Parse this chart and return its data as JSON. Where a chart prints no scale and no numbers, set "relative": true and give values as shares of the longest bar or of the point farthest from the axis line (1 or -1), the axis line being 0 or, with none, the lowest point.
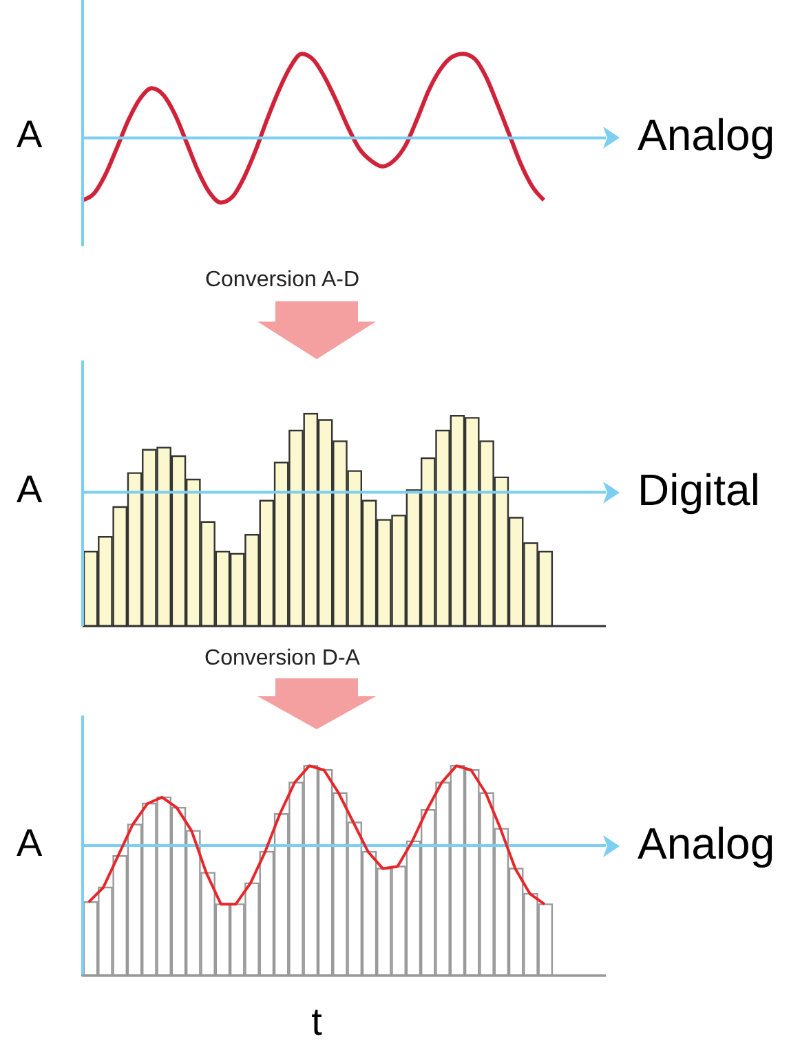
{
  "chart_data": [
    {
      "type": "line",
      "xlabel": "Analog",
      "ylabel": "A",
      "relative": true,
      "ref_lines": [
        {
          "axis": "y",
          "value": 0,
          "color": "#7ccff0"
        }
      ],
      "categories": [
        null,
        null,
        null,
        null,
        null,
        null,
        null,
        null,
        null,
        null,
        null,
        null,
        null,
        null,
        null,
        null,
        null,
        null,
        null,
        null,
        null,
        null,
        null,
        null,
        null,
        null,
        null,
        null,
        null,
        null,
        null,
        null,
        null,
        null,
        null,
        null,
        null,
        null,
        null,
        null,
        null
      ],
      "series": [
        {
          "color": "#d0233a",
          "values": [
            -0.74,
            -0.66,
            -0.43,
            -0.11,
            0.22,
            0.47,
            0.59,
            0.51,
            0.28,
            -0.05,
            -0.39,
            -0.65,
            -0.77,
            -0.7,
            -0.47,
            -0.15,
            0.22,
            0.56,
            0.84,
            1,
            0.93,
            0.72,
            0.44,
            0.13,
            -0.13,
            -0.27,
            -0.34,
            -0.27,
            -0.09,
            0.22,
            0.56,
            0.81,
            0.96,
            1,
            0.94,
            0.72,
            0.39,
            0.04,
            -0.31,
            -0.58,
            -0.74
          ]
        }
      ]
    },
    {
      "type": "bar",
      "title": "Conversion A-D",
      "xlabel": "Digital",
      "ylabel": "A",
      "relative": true,
      "categories": [
        null,
        null,
        null,
        null,
        null,
        null,
        null,
        null,
        null,
        null,
        null,
        null,
        null,
        null,
        null,
        null,
        null,
        null,
        null,
        null,
        null,
        null,
        null,
        null,
        null,
        null,
        null,
        null,
        null,
        null,
        null,
        null
      ],
      "series": [
        {
          "color": "#fbf8cf",
          "values": [
            0.35,
            0.42,
            0.56,
            0.72,
            0.83,
            0.84,
            0.8,
            0.69,
            0.49,
            0.35,
            0.34,
            0.43,
            0.59,
            0.77,
            0.92,
            1,
            0.97,
            0.87,
            0.73,
            0.59,
            0.5,
            0.52,
            0.64,
            0.79,
            0.92,
            0.99,
            0.98,
            0.87,
            0.7,
            0.51,
            0.39,
            0.35
          ]
        }
      ],
      "ref_lines": [
        {
          "axis": "y",
          "value": 0.63,
          "color": "#7ccff0"
        }
      ]
    },
    {
      "type": "bar",
      "title": "Conversion D-A",
      "xlabel": "Analog",
      "ylabel": "A",
      "annotations": [
        "t"
      ],
      "relative": true,
      "categories": [
        null,
        null,
        null,
        null,
        null,
        null,
        null,
        null,
        null,
        null,
        null,
        null,
        null,
        null,
        null,
        null,
        null,
        null,
        null,
        null,
        null,
        null,
        null,
        null,
        null,
        null,
        null,
        null,
        null,
        null,
        null,
        null
      ],
      "series": [
        {
          "color": "#ffffff",
          "values": [
            0.35,
            0.42,
            0.57,
            0.72,
            0.82,
            0.85,
            0.8,
            0.69,
            0.49,
            0.34,
            0.34,
            0.44,
            0.59,
            0.77,
            0.92,
            1,
            0.98,
            0.87,
            0.73,
            0.59,
            0.51,
            0.52,
            0.64,
            0.79,
            0.92,
            1,
            0.98,
            0.87,
            0.7,
            0.51,
            0.39,
            0.34
          ]
        }
      ],
      "ref_lines": [
        {
          "axis": "y",
          "value": 0.62,
          "color": "#7ccff0"
        }
      ]
    },
    {
      "type": "line",
      "relative": true,
      "categories": [
        null,
        null,
        null,
        null,
        null,
        null,
        null,
        null,
        null,
        null,
        null,
        null,
        null,
        null,
        null,
        null,
        null,
        null,
        null,
        null,
        null,
        null,
        null,
        null,
        null,
        null,
        null,
        null,
        null,
        null,
        null,
        null
      ],
      "series": [
        {
          "color": "#e8262a",
          "values": [
            0.35,
            0.42,
            0.57,
            0.72,
            0.82,
            0.85,
            0.8,
            0.69,
            0.49,
            0.34,
            0.34,
            0.44,
            0.59,
            0.77,
            0.92,
            1,
            0.98,
            0.87,
            0.73,
            0.59,
            0.51,
            0.52,
            0.64,
            0.79,
            0.92,
            1,
            0.98,
            0.87,
            0.7,
            0.51,
            0.39,
            0.34
          ]
        }
      ]
    }
  ]
}
